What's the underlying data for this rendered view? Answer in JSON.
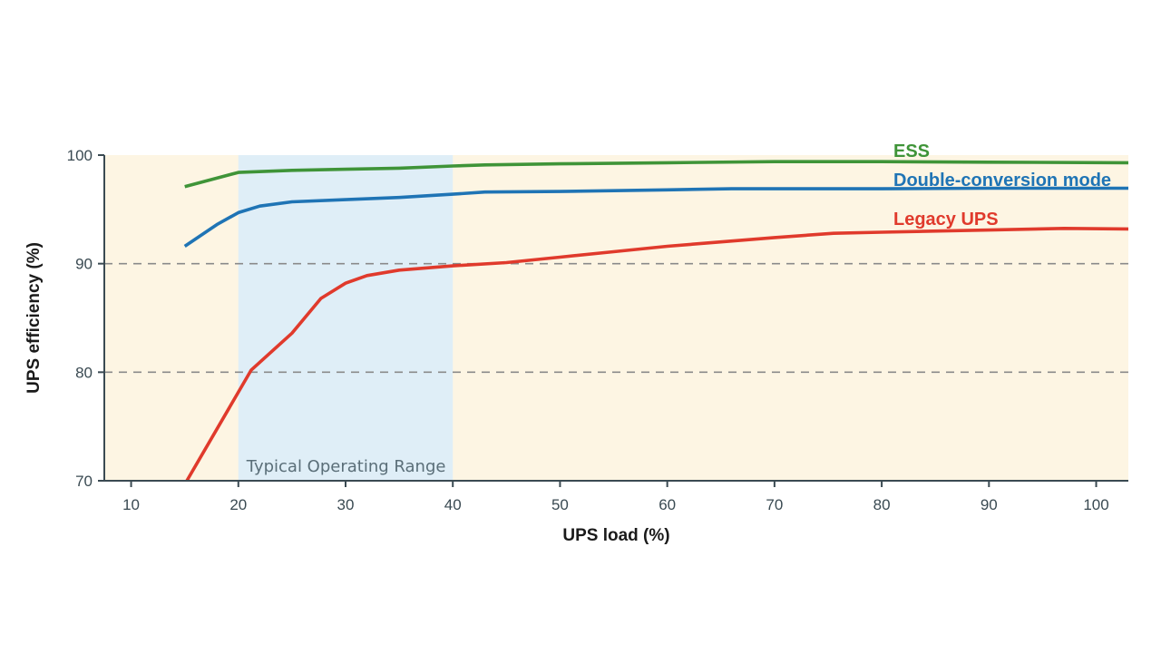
{
  "chart_data": {
    "type": "line",
    "xlabel": "UPS load (%)",
    "ylabel": "UPS efficiency (%)",
    "xlim": [
      7.5,
      103
    ],
    "ylim": [
      70,
      100
    ],
    "xticks": [
      10,
      20,
      30,
      40,
      50,
      60,
      70,
      80,
      90,
      100
    ],
    "yticks": [
      70,
      80,
      90,
      100
    ],
    "grid": {
      "horizontal_dashed_at": [
        80,
        90
      ]
    },
    "background_color": "#fdf5e3",
    "highlight_band": {
      "label": "Typical Operating Range",
      "x_range": [
        20,
        40
      ],
      "color": "#dfeef7"
    },
    "series": [
      {
        "name": "ESS",
        "color": "#3f9438",
        "points": [
          [
            15,
            97.1
          ],
          [
            20,
            98.4
          ],
          [
            25,
            98.6
          ],
          [
            30,
            98.7
          ],
          [
            35,
            98.8
          ],
          [
            40,
            99.0
          ],
          [
            43,
            99.1
          ],
          [
            50,
            99.2
          ],
          [
            60,
            99.3
          ],
          [
            70,
            99.4
          ],
          [
            80,
            99.4
          ],
          [
            90,
            99.35
          ],
          [
            103,
            99.3
          ]
        ]
      },
      {
        "name": "Double-conversion mode",
        "color": "#1f74b5",
        "points": [
          [
            15,
            91.6
          ],
          [
            18,
            93.6
          ],
          [
            20,
            94.7
          ],
          [
            22,
            95.3
          ],
          [
            25,
            95.7
          ],
          [
            30,
            95.9
          ],
          [
            35,
            96.1
          ],
          [
            40,
            96.4
          ],
          [
            43,
            96.6
          ],
          [
            50,
            96.65
          ],
          [
            60,
            96.8
          ],
          [
            66,
            96.9
          ],
          [
            80,
            96.9
          ],
          [
            90,
            96.95
          ],
          [
            103,
            96.95
          ]
        ]
      },
      {
        "name": "Legacy UPS",
        "color": "#e03a2c",
        "points": [
          [
            15.2,
            70.0
          ],
          [
            21.2,
            80.2
          ],
          [
            25,
            83.6
          ],
          [
            27.7,
            86.8
          ],
          [
            30,
            88.2
          ],
          [
            32,
            88.9
          ],
          [
            35,
            89.4
          ],
          [
            40,
            89.8
          ],
          [
            45,
            90.1
          ],
          [
            50,
            90.6
          ],
          [
            55,
            91.1
          ],
          [
            60,
            91.6
          ],
          [
            65,
            92.0
          ],
          [
            70,
            92.4
          ],
          [
            75.5,
            92.8
          ],
          [
            80,
            92.9
          ],
          [
            90,
            93.1
          ],
          [
            97,
            93.25
          ],
          [
            103,
            93.2
          ]
        ]
      }
    ]
  }
}
